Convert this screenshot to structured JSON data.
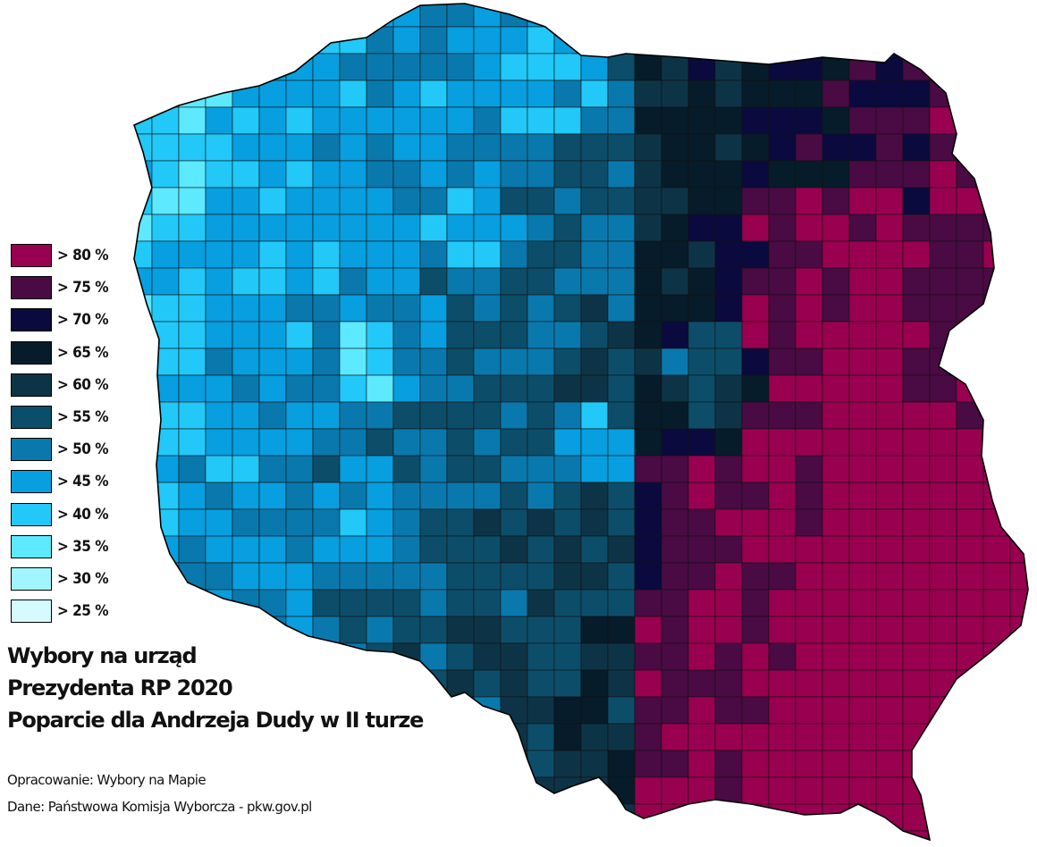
{
  "legend": {
    "items": [
      {
        "label": "> 80 %",
        "color": "#990050"
      },
      {
        "label": "> 75 %",
        "color": "#4a0a44"
      },
      {
        "label": "> 70 %",
        "color": "#0b0a3e"
      },
      {
        "label": "> 65 %",
        "color": "#061c2a"
      },
      {
        "label": "> 60 %",
        "color": "#0d3446"
      },
      {
        "label": "> 55 %",
        "color": "#0c4e6a"
      },
      {
        "label": "> 50 %",
        "color": "#0979ad"
      },
      {
        "label": "> 45 %",
        "color": "#079fdf"
      },
      {
        "label": "> 40 %",
        "color": "#22c8f8"
      },
      {
        "label": "> 35 %",
        "color": "#5de9ff"
      },
      {
        "label": "> 30 %",
        "color": "#a2f5ff"
      },
      {
        "label": "> 25 %",
        "color": "#d6fbff"
      }
    ]
  },
  "title": {
    "line1": "Wybory na urząd",
    "line2": "Prezydenta RP 2020",
    "line3": "Poparcie dla Andrzeja Dudy w II turze"
  },
  "credits": {
    "author": "Opracowanie: Wybory na Mapie",
    "source": "Dane: Państwowa Komisja Wyborcza - pkw.gov.pl"
  }
}
